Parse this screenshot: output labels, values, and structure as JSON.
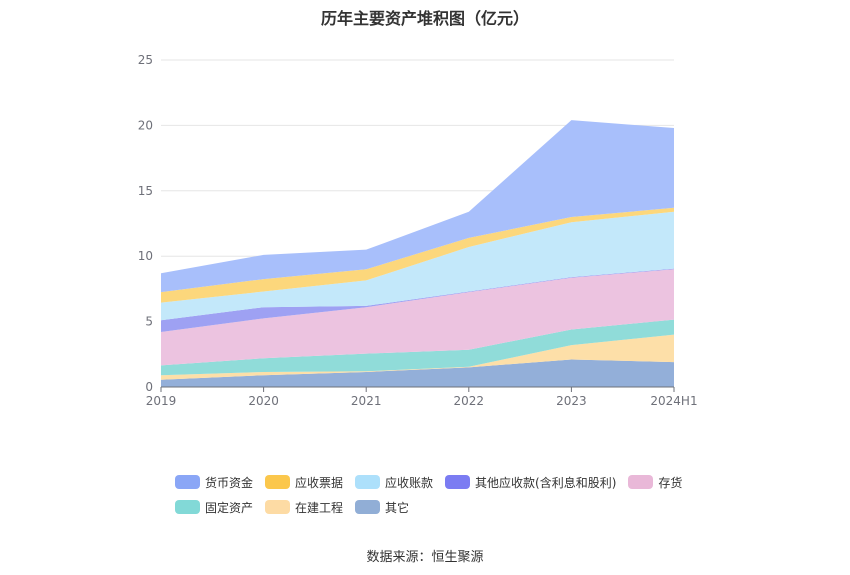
{
  "chart_data": {
    "type": "area",
    "stacked": true,
    "title": "历年主要资产堆积图（亿元）",
    "x": [
      "2019",
      "2020",
      "2021",
      "2022",
      "2023",
      "2024H1"
    ],
    "ylim": [
      0,
      25
    ],
    "yticks": [
      "0",
      "5",
      "10",
      "15",
      "20",
      "25"
    ],
    "grid": true,
    "legend_position": "bottom",
    "series": [
      {
        "name": "其它",
        "color": "#93afd9",
        "values": [
          0.55,
          0.9,
          1.15,
          1.5,
          2.1,
          1.9
        ]
      },
      {
        "name": "在建工程",
        "color": "#fddfa8",
        "values": [
          0.35,
          0.25,
          0.05,
          0.05,
          1.1,
          2.1
        ]
      },
      {
        "name": "固定资产",
        "color": "#90dcd9",
        "values": [
          0.75,
          1.05,
          1.35,
          1.3,
          1.2,
          1.15
        ]
      },
      {
        "name": "存货",
        "color": "#ecc3e0",
        "values": [
          2.55,
          3.05,
          3.55,
          4.4,
          3.95,
          3.85
        ]
      },
      {
        "name": "其他应收款(含利息和股利)",
        "color": "#9ea1f3",
        "values": [
          0.9,
          0.85,
          0.1,
          0.05,
          0.05,
          0.05
        ]
      },
      {
        "name": "应收账款",
        "color": "#c3e8fa",
        "values": [
          1.35,
          1.2,
          1.95,
          3.4,
          4.2,
          4.35
        ]
      },
      {
        "name": "应收票据",
        "color": "#fcd77c",
        "values": [
          0.8,
          0.95,
          0.85,
          0.7,
          0.4,
          0.3
        ]
      },
      {
        "name": "货币资金",
        "color": "#a8bffb",
        "values": [
          1.45,
          1.85,
          1.5,
          2.0,
          7.4,
          6.1
        ]
      }
    ]
  },
  "legend": [
    {
      "name": "货币资金",
      "color": "#8aa6f6"
    },
    {
      "name": "应收票据",
      "color": "#fbc74c"
    },
    {
      "name": "应收账款",
      "color": "#ade0fb"
    },
    {
      "name": "其他应收款(含利息和股利)",
      "color": "#7b7cf2"
    },
    {
      "name": "存货",
      "color": "#e9b8d8"
    },
    {
      "name": "固定资产",
      "color": "#82d9d7"
    },
    {
      "name": "在建工程",
      "color": "#fddba4"
    },
    {
      "name": "其它",
      "color": "#91aed6"
    }
  ],
  "source": "数据来源：恒生聚源"
}
